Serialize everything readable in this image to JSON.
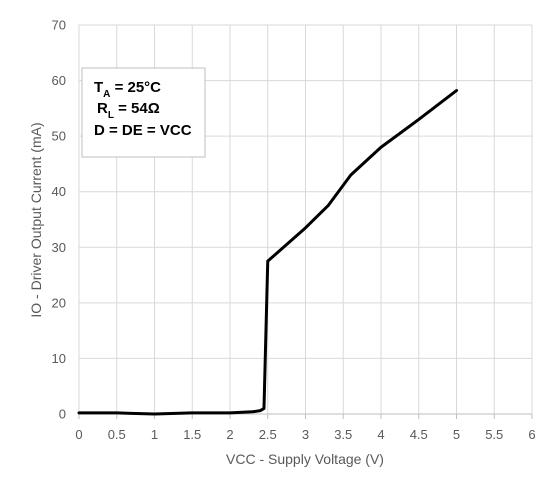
{
  "chart_data": {
    "type": "line",
    "x": [
      0,
      0.5,
      1,
      1.5,
      2,
      2.3,
      2.4,
      2.45,
      2.5,
      3.0,
      3.3,
      3.6,
      4.0,
      4.5,
      5.0
    ],
    "series": [
      {
        "values": [
          0.2,
          0.2,
          0.0,
          0.2,
          0.2,
          0.4,
          0.6,
          1.0,
          27.5,
          33.5,
          37.5,
          43.0,
          48.0,
          53.0,
          58.2
        ]
      }
    ],
    "xlabel": "VCC - Supply Voltage (V)",
    "ylabel": "IO - Driver Output Current (mA)",
    "xlim": [
      0,
      6
    ],
    "ylim": [
      0,
      70
    ],
    "x_ticks": [
      "0",
      "0.5",
      "1",
      "1.5",
      "2",
      "2.5",
      "3",
      "3.5",
      "4",
      "4.5",
      "5",
      "5.5",
      "6"
    ],
    "y_ticks": [
      "0",
      "10",
      "20",
      "30",
      "40",
      "50",
      "60",
      "70"
    ],
    "grid": true,
    "line_color": "#000000",
    "annotation": {
      "line1": {
        "main": "T",
        "sub": "A",
        "rest": " = 25°C"
      },
      "line2": {
        "main": "R",
        "sub": "L",
        "rest": " = 54Ω"
      },
      "line3": {
        "main": "D = DE = VCC"
      }
    }
  }
}
